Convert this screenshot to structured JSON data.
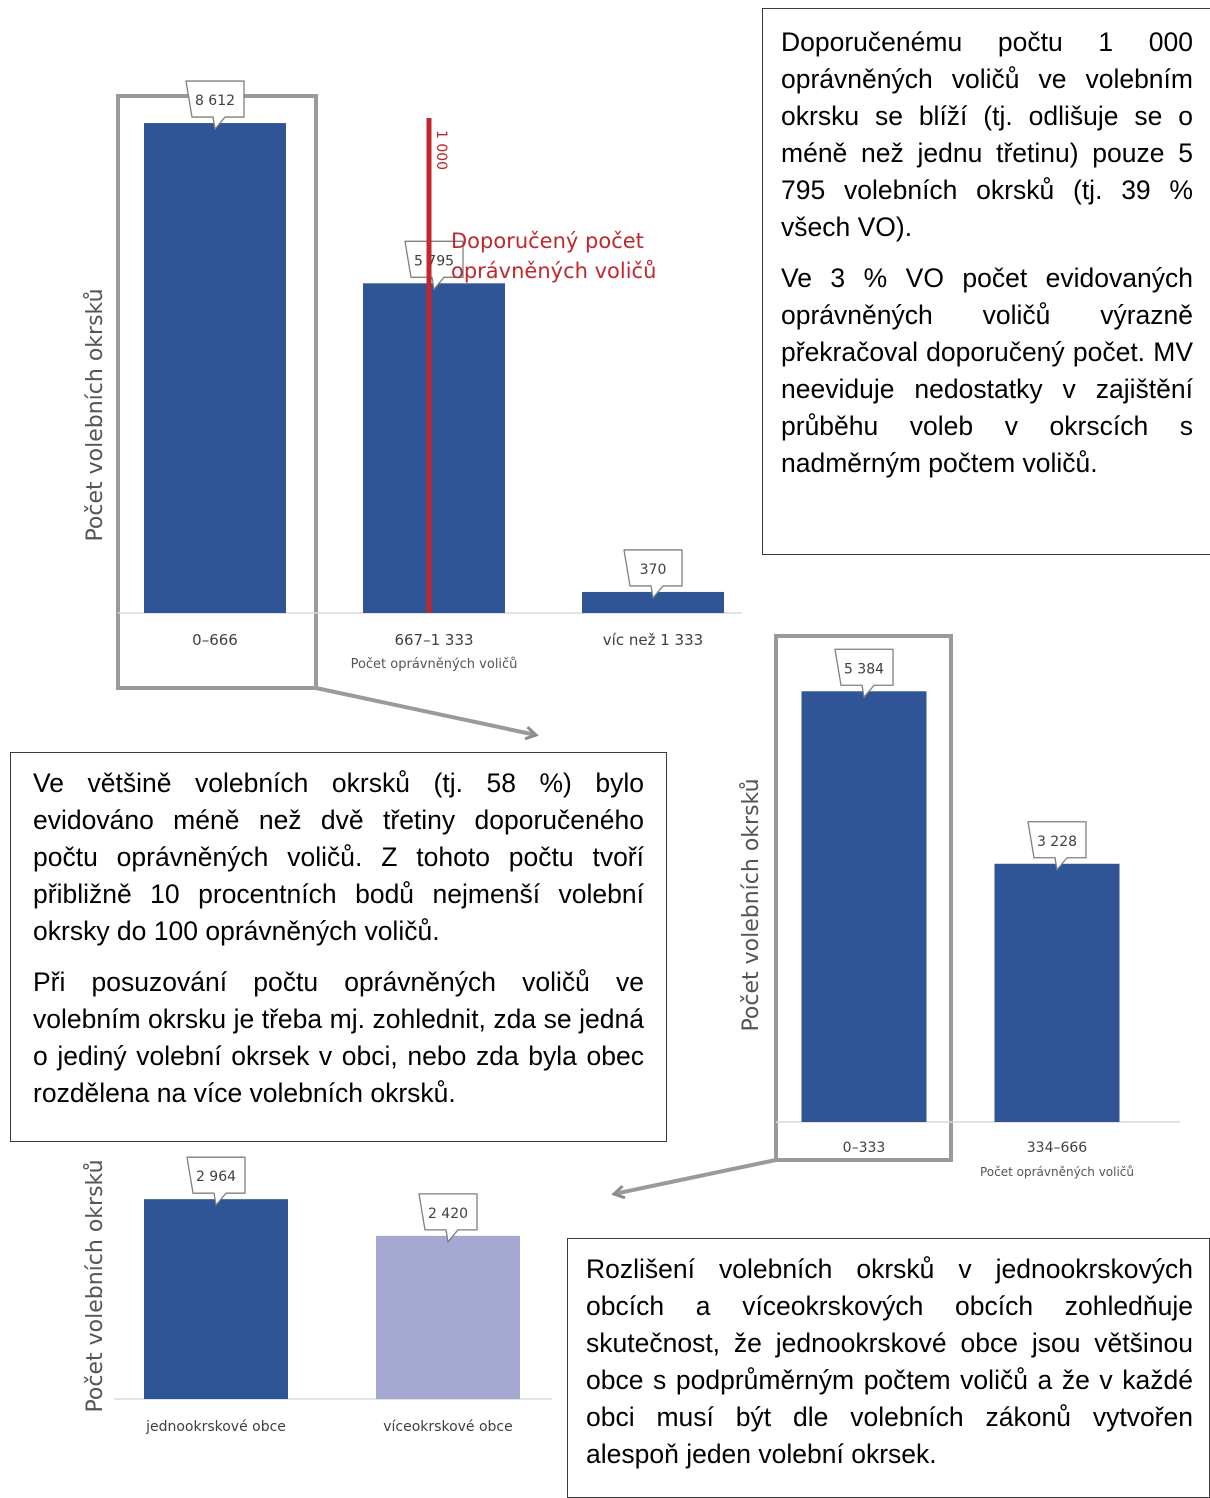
{
  "text_boxes": {
    "top_right": [
      "Doporučenému počtu 1 000 oprávněných voličů ve volebním okrsku se blíží (tj. odlišuje se o méně než jednu třetinu) pouze 5 795 volebních okrsků (tj. 39 % všech VO).",
      "Ve 3 % VO počet evidovaných oprávněných voličů výrazně překračoval doporučený počet. MV neeviduje nedostatky v zajištění průběhu voleb v okrscích s nadměrným počtem voličů."
    ],
    "middle_left": [
      "Ve většině volebních okrsků (tj. 58 %) bylo evidováno méně než dvě třetiny doporučeného počtu oprávněných voličů. Z tohoto počtu tvoří přibližně 10 procentních bodů nejmenší volební okrsky do 100 oprávněných voličů.",
      "Při posuzování počtu oprávněných voličů ve volebním okrsku je třeba mj. zohlednit, zda se jedná o jediný volební okrsek v obci, nebo zda byla obec rozdělena na více volebních okrsků."
    ],
    "bottom_right": [
      "Rozlišení volebních okrsků v jednookrskových obcích a víceokrskových obcích zohledňuje skutečnost, že jednookrskové obce jsou většinou obce s podprůměrným počtem voličů a že v každé obci musí být dle volebních zákonů vytvořen alespoň jeden volební okrsek."
    ]
  },
  "chart_data": [
    {
      "type": "bar",
      "categories": [
        "0–666",
        "667–1 333",
        "víc než 1 333"
      ],
      "values": [
        8612,
        5795,
        370
      ],
      "value_labels": [
        "8 612",
        "5 795",
        "370"
      ],
      "xlabel": "Počet oprávněných voličů",
      "ylabel": "Počet volebních okrsků",
      "ylim": [
        0,
        9000
      ],
      "bar_color": "#2f5597",
      "grid": false,
      "reference_line": {
        "value": 1000,
        "value_label": "1 000",
        "label_line1": "Doporučený počet",
        "label_line2": "oprávněných voličů",
        "color": "#c0282d"
      }
    },
    {
      "type": "bar",
      "categories": [
        "0–333",
        "334–666"
      ],
      "values": [
        5384,
        3228
      ],
      "value_labels": [
        "5 384",
        "3 228"
      ],
      "xlabel": "Počet oprávněných voličů",
      "ylabel": "Počet volebních okrsků",
      "ylim": [
        0,
        5600
      ],
      "bar_color": "#2f5597",
      "grid": false
    },
    {
      "type": "bar",
      "categories": [
        "jednookrskové obce",
        "víceokrskové obce"
      ],
      "values": [
        2964,
        2420
      ],
      "value_labels": [
        "2 964",
        "2 420"
      ],
      "xlabel": "",
      "ylabel": "Počet volebních okrsků",
      "ylim": [
        0,
        3100
      ],
      "bar_colors": [
        "#2f5597",
        "#a5a8d0"
      ],
      "grid": false
    }
  ]
}
